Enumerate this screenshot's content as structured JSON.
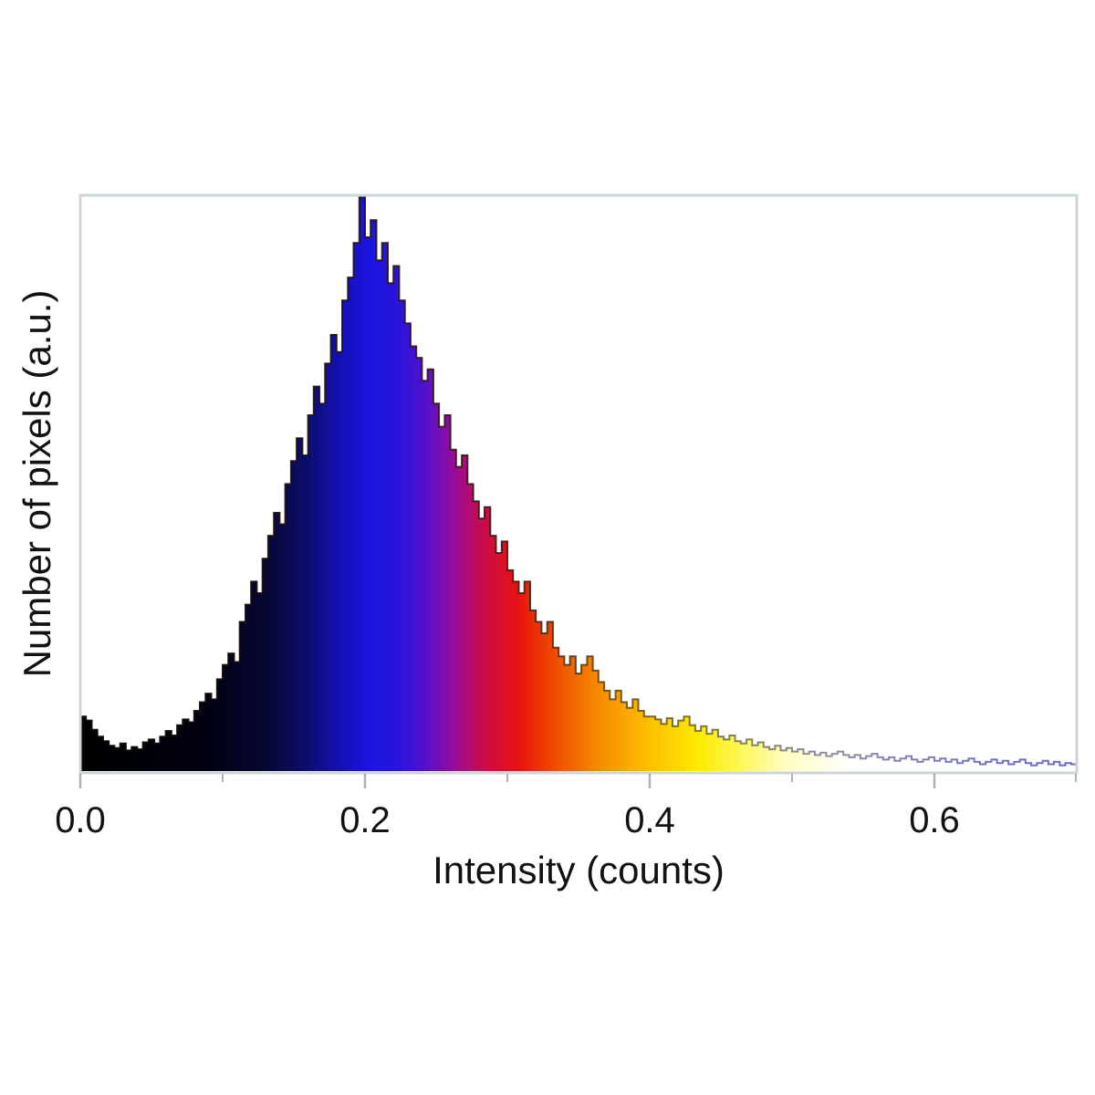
{
  "figure": {
    "background": "#ffffff",
    "frame_color": "#ccd5d8",
    "tick_color": "#a9b4b9",
    "text_color": "#111111"
  },
  "chart_data": {
    "type": "bar",
    "subtype": "histogram",
    "title": "",
    "xlabel": "Intensity (counts)",
    "ylabel": "Number of pixels (a.u.)",
    "xlim": [
      0.0,
      0.7
    ],
    "ylabel_units": "a.u.",
    "y_axis_ticks": "none",
    "grid": false,
    "legend": false,
    "bin_width": 0.004,
    "x_start": 0.0,
    "peak": {
      "intensity": 0.196,
      "relative_height": 1.0
    },
    "x_ticks_major": [
      {
        "value": 0.0,
        "label": "0.0"
      },
      {
        "value": 0.2,
        "label": "0.2"
      },
      {
        "value": 0.4,
        "label": "0.4"
      },
      {
        "value": 0.6,
        "label": "0.6"
      }
    ],
    "x_ticks_minor": [
      0.1,
      0.3,
      0.5,
      0.7
    ],
    "heights": [
      0.095,
      0.088,
      0.072,
      0.06,
      0.052,
      0.044,
      0.04,
      0.048,
      0.036,
      0.042,
      0.038,
      0.05,
      0.055,
      0.048,
      0.06,
      0.07,
      0.062,
      0.08,
      0.09,
      0.085,
      0.105,
      0.12,
      0.135,
      0.125,
      0.16,
      0.185,
      0.205,
      0.19,
      0.26,
      0.29,
      0.33,
      0.31,
      0.37,
      0.41,
      0.45,
      0.43,
      0.5,
      0.54,
      0.58,
      0.55,
      0.62,
      0.67,
      0.64,
      0.71,
      0.76,
      0.73,
      0.82,
      0.86,
      0.92,
      1.0,
      0.93,
      0.96,
      0.89,
      0.92,
      0.85,
      0.88,
      0.82,
      0.78,
      0.74,
      0.72,
      0.68,
      0.7,
      0.64,
      0.6,
      0.62,
      0.56,
      0.53,
      0.55,
      0.5,
      0.47,
      0.44,
      0.46,
      0.41,
      0.38,
      0.4,
      0.35,
      0.33,
      0.31,
      0.33,
      0.28,
      0.26,
      0.24,
      0.26,
      0.215,
      0.2,
      0.185,
      0.2,
      0.17,
      0.185,
      0.2,
      0.175,
      0.155,
      0.14,
      0.125,
      0.14,
      0.12,
      0.11,
      0.125,
      0.105,
      0.095,
      0.095,
      0.09,
      0.082,
      0.092,
      0.078,
      0.088,
      0.095,
      0.08,
      0.07,
      0.078,
      0.065,
      0.072,
      0.06,
      0.055,
      0.062,
      0.052,
      0.048,
      0.055,
      0.045,
      0.05,
      0.042,
      0.038,
      0.044,
      0.036,
      0.04,
      0.034,
      0.038,
      0.03,
      0.034,
      0.028,
      0.032,
      0.026,
      0.03,
      0.034,
      0.028,
      0.024,
      0.028,
      0.022,
      0.026,
      0.03,
      0.024,
      0.02,
      0.024,
      0.018,
      0.022,
      0.026,
      0.02,
      0.016,
      0.02,
      0.024,
      0.018,
      0.022,
      0.016,
      0.02,
      0.014,
      0.018,
      0.022,
      0.016,
      0.012,
      0.016,
      0.02,
      0.014,
      0.018,
      0.012,
      0.016,
      0.02,
      0.014,
      0.01,
      0.014,
      0.018,
      0.012,
      0.016,
      0.01,
      0.014,
      0.012,
      0.01
    ],
    "colormap": [
      {
        "at": 0.0,
        "color": "#000000"
      },
      {
        "at": 0.09,
        "color": "#010112"
      },
      {
        "at": 0.13,
        "color": "#070732"
      },
      {
        "at": 0.16,
        "color": "#0d0d6e"
      },
      {
        "at": 0.185,
        "color": "#1511bc"
      },
      {
        "at": 0.205,
        "color": "#1c15e2"
      },
      {
        "at": 0.225,
        "color": "#2a14da"
      },
      {
        "at": 0.245,
        "color": "#5c10c8"
      },
      {
        "at": 0.265,
        "color": "#a00b90"
      },
      {
        "at": 0.285,
        "color": "#cc0c44"
      },
      {
        "at": 0.308,
        "color": "#e61410"
      },
      {
        "at": 0.33,
        "color": "#ee4600"
      },
      {
        "at": 0.365,
        "color": "#f78c00"
      },
      {
        "at": 0.4,
        "color": "#fcc000"
      },
      {
        "at": 0.435,
        "color": "#fdeb00"
      },
      {
        "at": 0.465,
        "color": "#fdf75c"
      },
      {
        "at": 0.495,
        "color": "#fefdc0"
      },
      {
        "at": 0.54,
        "color": "#ffffff"
      },
      {
        "at": 0.7,
        "color": "#ffffff"
      }
    ],
    "outline": [
      {
        "at": 0.0,
        "color": "#000000"
      },
      {
        "at": 0.3,
        "color": "#3a1a14"
      },
      {
        "at": 0.36,
        "color": "#5c4010"
      },
      {
        "at": 0.42,
        "color": "#6e6420"
      },
      {
        "at": 0.47,
        "color": "#787850"
      },
      {
        "at": 0.52,
        "color": "#84848e"
      },
      {
        "at": 0.58,
        "color": "#7474b4"
      },
      {
        "at": 0.64,
        "color": "#6060c4"
      },
      {
        "at": 0.7,
        "color": "#5a5ac8"
      }
    ]
  }
}
